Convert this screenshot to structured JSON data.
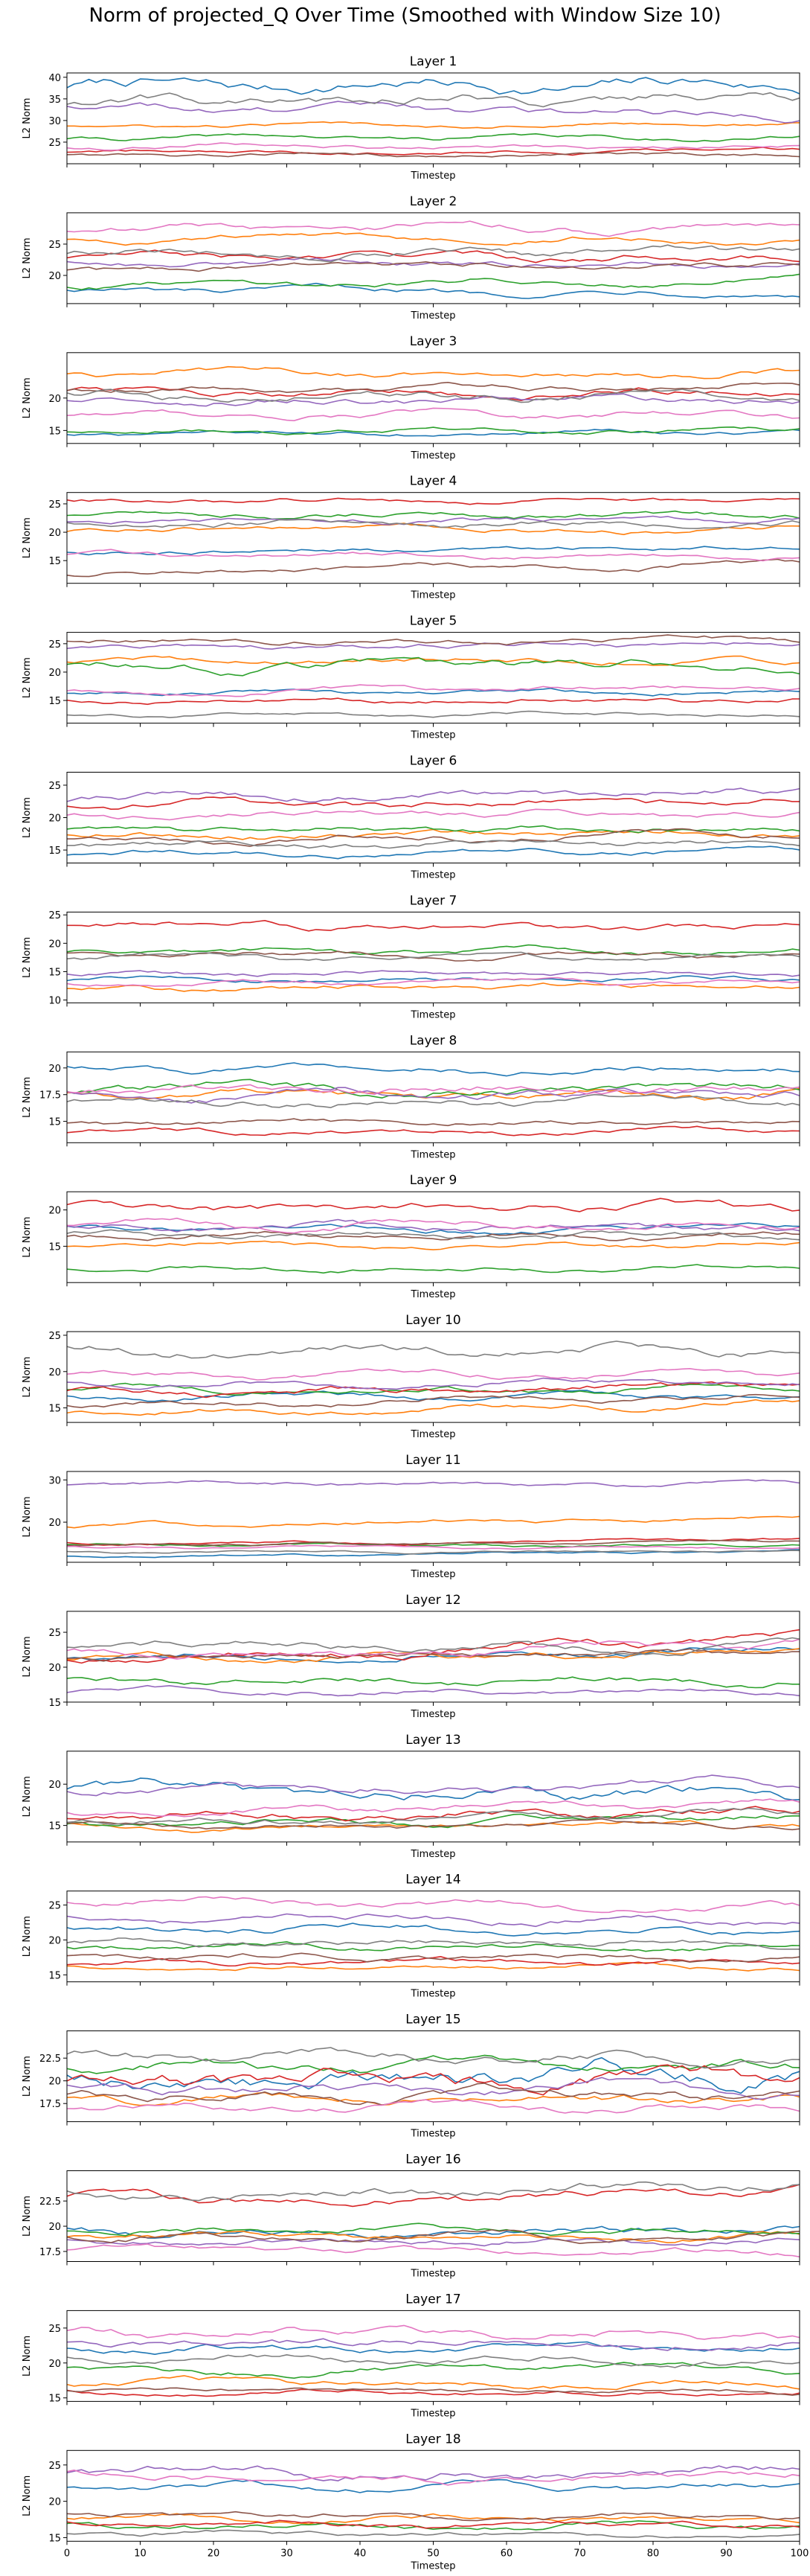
{
  "figure": {
    "title": "Norm of projected_Q Over Time (Smoothed with Window Size 10)",
    "palette": [
      "#1f77b4",
      "#ff7f0e",
      "#2ca02c",
      "#d62728",
      "#9467bd",
      "#8c564b",
      "#e377c2",
      "#7f7f7f"
    ]
  },
  "chart_data": [
    {
      "type": "line",
      "title": "Layer 1",
      "xlabel": "Timestep",
      "ylabel": "L2 Norm",
      "xlim": [
        0,
        100
      ],
      "ylim": [
        20,
        41
      ],
      "yticks": [
        25,
        30,
        35,
        40
      ],
      "xticks": [],
      "grid": false,
      "series": [
        {
          "level": 38,
          "trend": 0,
          "amp": 1.8
        },
        {
          "level": 29,
          "trend": 0.8,
          "amp": 0.5
        },
        {
          "level": 26,
          "trend": 0,
          "amp": 0.6
        },
        {
          "level": 23,
          "trend": 0,
          "amp": 0.5
        },
        {
          "level": 32.5,
          "trend": -1.5,
          "amp": 1.2
        },
        {
          "level": 22,
          "trend": 0,
          "amp": 0.5
        },
        {
          "level": 24,
          "trend": 0,
          "amp": 0.6
        },
        {
          "level": 35,
          "trend": 1,
          "amp": 1.5
        }
      ]
    },
    {
      "type": "line",
      "title": "Layer 2",
      "xlabel": "Timestep",
      "ylabel": "L2 Norm",
      "xlim": [
        0,
        100
      ],
      "ylim": [
        15.5,
        30
      ],
      "yticks": [
        20,
        25
      ],
      "xticks": [],
      "grid": false,
      "series": [
        {
          "level": 17.5,
          "trend": 0,
          "amp": 0.6
        },
        {
          "level": 26,
          "trend": 0.5,
          "amp": 0.6
        },
        {
          "level": 19,
          "trend": 1,
          "amp": 0.6
        },
        {
          "level": 23,
          "trend": 0,
          "amp": 0.7
        },
        {
          "level": 22,
          "trend": 0,
          "amp": 0.6
        },
        {
          "level": 21.5,
          "trend": 1,
          "amp": 0.6
        },
        {
          "level": 27.5,
          "trend": 0,
          "amp": 0.7
        },
        {
          "level": 23.5,
          "trend": 0,
          "amp": 0.8
        }
      ]
    },
    {
      "type": "line",
      "title": "Layer 3",
      "xlabel": "Timestep",
      "ylabel": "L2 Norm",
      "xlim": [
        0,
        100
      ],
      "ylim": [
        13,
        27
      ],
      "yticks": [
        15,
        20
      ],
      "xticks": [],
      "grid": false,
      "series": [
        {
          "level": 14.5,
          "trend": 0.5,
          "amp": 0.4
        },
        {
          "level": 24,
          "trend": 0,
          "amp": 0.6
        },
        {
          "level": 15,
          "trend": 0,
          "amp": 0.4
        },
        {
          "level": 21,
          "trend": 0,
          "amp": 0.7
        },
        {
          "level": 19.5,
          "trend": 0,
          "amp": 0.7
        },
        {
          "level": 21.5,
          "trend": 0,
          "amp": 0.6
        },
        {
          "level": 17.5,
          "trend": 0,
          "amp": 0.6
        },
        {
          "level": 20.5,
          "trend": 0,
          "amp": 0.8
        }
      ]
    },
    {
      "type": "line",
      "title": "Layer 4",
      "xlabel": "Timestep",
      "ylabel": "L2 Norm",
      "xlim": [
        0,
        100
      ],
      "ylim": [
        11,
        27
      ],
      "yticks": [
        15,
        20,
        25
      ],
      "xticks": [],
      "grid": false,
      "series": [
        {
          "level": 17,
          "trend": 1,
          "amp": 0.5
        },
        {
          "level": 20.5,
          "trend": 0,
          "amp": 0.6
        },
        {
          "level": 23,
          "trend": 0,
          "amp": 0.6
        },
        {
          "level": 25.5,
          "trend": 0,
          "amp": 0.5
        },
        {
          "level": 22,
          "trend": 0,
          "amp": 0.6
        },
        {
          "level": 13.5,
          "trend": 1.5,
          "amp": 0.6
        },
        {
          "level": 16,
          "trend": 0,
          "amp": 0.5
        },
        {
          "level": 21.5,
          "trend": 0,
          "amp": 0.7
        }
      ]
    },
    {
      "type": "line",
      "title": "Layer 5",
      "xlabel": "Timestep",
      "ylabel": "L2 Norm",
      "xlim": [
        0,
        100
      ],
      "ylim": [
        11,
        27
      ],
      "yticks": [
        15,
        20,
        25
      ],
      "xticks": [],
      "grid": false,
      "series": [
        {
          "level": 16.5,
          "trend": 0,
          "amp": 0.5
        },
        {
          "level": 22,
          "trend": 0,
          "amp": 0.6
        },
        {
          "level": 21,
          "trend": 0,
          "amp": 1
        },
        {
          "level": 15,
          "trend": 0,
          "amp": 0.5
        },
        {
          "level": 24.5,
          "trend": 0,
          "amp": 0.6
        },
        {
          "level": 25.5,
          "trend": 0,
          "amp": 0.6
        },
        {
          "level": 17,
          "trend": 1,
          "amp": 0.5
        },
        {
          "level": 12.5,
          "trend": 0,
          "amp": 0.4
        }
      ]
    },
    {
      "type": "line",
      "title": "Layer 6",
      "xlabel": "Timestep",
      "ylabel": "L2 Norm",
      "xlim": [
        0,
        100
      ],
      "ylim": [
        13,
        27
      ],
      "yticks": [
        15,
        20,
        25
      ],
      "xticks": [],
      "grid": false,
      "series": [
        {
          "level": 14.5,
          "trend": 0,
          "amp": 0.5
        },
        {
          "level": 17.5,
          "trend": 0.5,
          "amp": 0.6
        },
        {
          "level": 18,
          "trend": 0,
          "amp": 0.6
        },
        {
          "level": 22,
          "trend": 0,
          "amp": 0.7
        },
        {
          "level": 23.5,
          "trend": 1.5,
          "amp": 0.7
        },
        {
          "level": 17,
          "trend": 1,
          "amp": 0.6
        },
        {
          "level": 20.5,
          "trend": 0.5,
          "amp": 0.6
        },
        {
          "level": 16,
          "trend": 0,
          "amp": 0.6
        }
      ]
    },
    {
      "type": "line",
      "title": "Layer 7",
      "xlabel": "Timestep",
      "ylabel": "L2 Norm",
      "xlim": [
        0,
        100
      ],
      "ylim": [
        9.5,
        25.5
      ],
      "yticks": [
        10,
        15,
        20,
        25
      ],
      "xticks": [],
      "grid": false,
      "series": [
        {
          "level": 13.5,
          "trend": 0,
          "amp": 0.5
        },
        {
          "level": 12,
          "trend": 0.5,
          "amp": 0.6
        },
        {
          "level": 18.5,
          "trend": 0,
          "amp": 0.6
        },
        {
          "level": 23,
          "trend": -1,
          "amp": 0.7
        },
        {
          "level": 14.5,
          "trend": 0,
          "amp": 0.5
        },
        {
          "level": 18,
          "trend": 0,
          "amp": 0.6
        },
        {
          "level": 13,
          "trend": 0,
          "amp": 0.5
        },
        {
          "level": 17.5,
          "trend": 0,
          "amp": 0.6
        }
      ]
    },
    {
      "type": "line",
      "title": "Layer 8",
      "xlabel": "Timestep",
      "ylabel": "L2 Norm",
      "xlim": [
        0,
        100
      ],
      "ylim": [
        13,
        21.5
      ],
      "yticks": [
        15,
        17.5,
        20
      ],
      "xticks": [],
      "grid": false,
      "series": [
        {
          "level": 20,
          "trend": 0,
          "amp": 0.4
        },
        {
          "level": 17.5,
          "trend": 0,
          "amp": 0.5
        },
        {
          "level": 18,
          "trend": 0,
          "amp": 0.5
        },
        {
          "level": 14,
          "trend": 0,
          "amp": 0.3
        },
        {
          "level": 17.5,
          "trend": 0,
          "amp": 0.5
        },
        {
          "level": 14.8,
          "trend": 0,
          "amp": 0.3
        },
        {
          "level": 18,
          "trend": 0,
          "amp": 0.5
        },
        {
          "level": 16.8,
          "trend": 0,
          "amp": 0.5
        }
      ]
    },
    {
      "type": "line",
      "title": "Layer 9",
      "xlabel": "Timestep",
      "ylabel": "L2 Norm",
      "xlim": [
        0,
        100
      ],
      "ylim": [
        10,
        22.5
      ],
      "yticks": [
        15,
        20
      ],
      "xticks": [],
      "grid": false,
      "series": [
        {
          "level": 17.5,
          "trend": 0,
          "amp": 0.5
        },
        {
          "level": 15,
          "trend": 0,
          "amp": 0.4
        },
        {
          "level": 12,
          "trend": 0,
          "amp": 0.4
        },
        {
          "level": 20.5,
          "trend": 0,
          "amp": 0.7
        },
        {
          "level": 17.5,
          "trend": 0,
          "amp": 0.6
        },
        {
          "level": 16.5,
          "trend": 0,
          "amp": 0.5
        },
        {
          "level": 18,
          "trend": 0,
          "amp": 0.6
        },
        {
          "level": 16.5,
          "trend": 0,
          "amp": 0.5
        }
      ]
    },
    {
      "type": "line",
      "title": "Layer 10",
      "xlabel": "Timestep",
      "ylabel": "L2 Norm",
      "xlim": [
        0,
        100
      ],
      "ylim": [
        13,
        25.5
      ],
      "yticks": [
        15,
        20,
        25
      ],
      "xticks": [],
      "grid": false,
      "series": [
        {
          "level": 16.5,
          "trend": 0,
          "amp": 0.5
        },
        {
          "level": 15,
          "trend": 1,
          "amp": 0.5
        },
        {
          "level": 17.5,
          "trend": 0,
          "amp": 0.5
        },
        {
          "level": 17.5,
          "trend": 1,
          "amp": 0.6
        },
        {
          "level": 18.5,
          "trend": 0,
          "amp": 0.5
        },
        {
          "level": 16,
          "trend": 1,
          "amp": 0.5
        },
        {
          "level": 19.5,
          "trend": 0,
          "amp": 0.5
        },
        {
          "level": 23,
          "trend": 0,
          "amp": 0.8
        }
      ]
    },
    {
      "type": "line",
      "title": "Layer 11",
      "xlabel": "Timestep",
      "ylabel": "L2 Norm",
      "xlim": [
        0,
        100
      ],
      "ylim": [
        10.5,
        32
      ],
      "yticks": [
        20,
        30
      ],
      "xticks": [],
      "grid": false,
      "series": [
        {
          "level": 12.5,
          "trend": 1,
          "amp": 0.3
        },
        {
          "level": 20,
          "trend": 2,
          "amp": 0.6
        },
        {
          "level": 14.5,
          "trend": 0,
          "amp": 0.4
        },
        {
          "level": 15.5,
          "trend": 1,
          "amp": 0.4
        },
        {
          "level": 29,
          "trend": 0,
          "amp": 0.6
        },
        {
          "level": 15,
          "trend": 1,
          "amp": 0.4
        },
        {
          "level": 14,
          "trend": 0,
          "amp": 0.3
        },
        {
          "level": 13,
          "trend": 0,
          "amp": 0.3
        }
      ]
    },
    {
      "type": "line",
      "title": "Layer 12",
      "xlabel": "Timestep",
      "ylabel": "L2 Norm",
      "xlim": [
        0,
        100
      ],
      "ylim": [
        15,
        28
      ],
      "yticks": [
        15,
        20,
        25
      ],
      "xticks": [],
      "grid": false,
      "series": [
        {
          "level": 22,
          "trend": 1,
          "amp": 0.6
        },
        {
          "level": 21.5,
          "trend": 1,
          "amp": 0.6
        },
        {
          "level": 18,
          "trend": 0,
          "amp": 0.6
        },
        {
          "level": 22.5,
          "trend": 3,
          "amp": 0.8
        },
        {
          "level": 16.5,
          "trend": 0,
          "amp": 0.5
        },
        {
          "level": 21.5,
          "trend": 1,
          "amp": 0.6
        },
        {
          "level": 22.5,
          "trend": 1,
          "amp": 0.7
        },
        {
          "level": 23,
          "trend": 0,
          "amp": 0.7
        }
      ]
    },
    {
      "type": "line",
      "title": "Layer 13",
      "xlabel": "Timestep",
      "ylabel": "L2 Norm",
      "xlim": [
        0,
        100
      ],
      "ylim": [
        13,
        24
      ],
      "yticks": [
        15,
        20
      ],
      "xticks": [],
      "grid": false,
      "series": [
        {
          "level": 19,
          "trend": -1,
          "amp": 1
        },
        {
          "level": 15,
          "trend": 0,
          "amp": 0.4
        },
        {
          "level": 15.5,
          "trend": 1,
          "amp": 0.5
        },
        {
          "level": 16.5,
          "trend": 1,
          "amp": 0.6
        },
        {
          "level": 19.5,
          "trend": 1,
          "amp": 0.6
        },
        {
          "level": 15,
          "trend": 0,
          "amp": 0.4
        },
        {
          "level": 17,
          "trend": 1,
          "amp": 0.5
        },
        {
          "level": 16,
          "trend": 1,
          "amp": 0.5
        }
      ]
    },
    {
      "type": "line",
      "title": "Layer 14",
      "xlabel": "Timestep",
      "ylabel": "L2 Norm",
      "xlim": [
        0,
        100
      ],
      "ylim": [
        14,
        27
      ],
      "yticks": [
        15,
        20,
        25
      ],
      "xticks": [],
      "grid": false,
      "series": [
        {
          "level": 21.5,
          "trend": 0,
          "amp": 0.6
        },
        {
          "level": 16,
          "trend": 0,
          "amp": 0.4
        },
        {
          "level": 19,
          "trend": 0,
          "amp": 0.5
        },
        {
          "level": 16.5,
          "trend": 0,
          "amp": 0.5
        },
        {
          "level": 23,
          "trend": 0,
          "amp": 0.6
        },
        {
          "level": 17.5,
          "trend": 0,
          "amp": 0.5
        },
        {
          "level": 25,
          "trend": -1,
          "amp": 0.6
        },
        {
          "level": 19.5,
          "trend": 0,
          "amp": 0.6
        }
      ]
    },
    {
      "type": "line",
      "title": "Layer 15",
      "xlabel": "Timestep",
      "ylabel": "L2 Norm",
      "xlim": [
        0,
        100
      ],
      "ylim": [
        15.5,
        25.5
      ],
      "yticks": [
        17.5,
        20,
        22.5
      ],
      "xticks": [],
      "grid": false,
      "series": [
        {
          "level": 20,
          "trend": 1,
          "amp": 1.5
        },
        {
          "level": 18,
          "trend": 0,
          "amp": 0.6
        },
        {
          "level": 21.5,
          "trend": 0,
          "amp": 0.7
        },
        {
          "level": 20,
          "trend": 1,
          "amp": 1.2
        },
        {
          "level": 19,
          "trend": 0,
          "amp": 0.7
        },
        {
          "level": 18.5,
          "trend": 0,
          "amp": 0.7
        },
        {
          "level": 17,
          "trend": 0,
          "amp": 0.5
        },
        {
          "level": 22.5,
          "trend": 0,
          "amp": 0.7
        }
      ]
    },
    {
      "type": "line",
      "title": "Layer 16",
      "xlabel": "Timestep",
      "ylabel": "L2 Norm",
      "xlim": [
        0,
        100
      ],
      "ylim": [
        16.5,
        25.5
      ],
      "yticks": [
        17.5,
        20,
        22.5
      ],
      "xticks": [],
      "grid": false,
      "series": [
        {
          "level": 19.5,
          "trend": 0,
          "amp": 0.5
        },
        {
          "level": 19,
          "trend": 0,
          "amp": 0.4
        },
        {
          "level": 19.5,
          "trend": 0,
          "amp": 0.4
        },
        {
          "level": 23,
          "trend": 1,
          "amp": 0.6
        },
        {
          "level": 18.5,
          "trend": 0,
          "amp": 0.4
        },
        {
          "level": 19,
          "trend": 0,
          "amp": 0.4
        },
        {
          "level": 17.5,
          "trend": 0,
          "amp": 0.4
        },
        {
          "level": 23.5,
          "trend": 1,
          "amp": 0.6
        }
      ]
    },
    {
      "type": "line",
      "title": "Layer 17",
      "xlabel": "Timestep",
      "ylabel": "L2 Norm",
      "xlim": [
        0,
        100
      ],
      "ylim": [
        14.5,
        27.5
      ],
      "yticks": [
        15,
        20,
        25
      ],
      "xticks": [],
      "grid": false,
      "series": [
        {
          "level": 22,
          "trend": 0,
          "amp": 0.6
        },
        {
          "level": 17,
          "trend": 0,
          "amp": 0.6
        },
        {
          "level": 19,
          "trend": 0,
          "amp": 0.6
        },
        {
          "level": 15.8,
          "trend": 0,
          "amp": 0.4
        },
        {
          "level": 23,
          "trend": 0,
          "amp": 0.7
        },
        {
          "level": 16,
          "trend": 0,
          "amp": 0.4
        },
        {
          "level": 24,
          "trend": 0,
          "amp": 0.8
        },
        {
          "level": 20.5,
          "trend": 0,
          "amp": 0.6
        }
      ]
    },
    {
      "type": "line",
      "title": "Layer 18",
      "xlabel": "Timestep",
      "ylabel": "L2 Norm",
      "xlim": [
        0,
        100
      ],
      "ylim": [
        14.5,
        27
      ],
      "yticks": [
        15,
        20,
        25
      ],
      "xticks": [
        0,
        10,
        20,
        30,
        40,
        50,
        60,
        70,
        80,
        90,
        100
      ],
      "grid": false,
      "series": [
        {
          "level": 22,
          "trend": 0,
          "amp": 0.6
        },
        {
          "level": 17.5,
          "trend": 0,
          "amp": 0.5
        },
        {
          "level": 16.5,
          "trend": 0,
          "amp": 0.5
        },
        {
          "level": 17,
          "trend": 0,
          "amp": 0.5
        },
        {
          "level": 24,
          "trend": 0,
          "amp": 0.8
        },
        {
          "level": 18,
          "trend": 0,
          "amp": 0.5
        },
        {
          "level": 23.5,
          "trend": 0,
          "amp": 0.7
        },
        {
          "level": 15.5,
          "trend": 0,
          "amp": 0.4
        }
      ]
    }
  ]
}
